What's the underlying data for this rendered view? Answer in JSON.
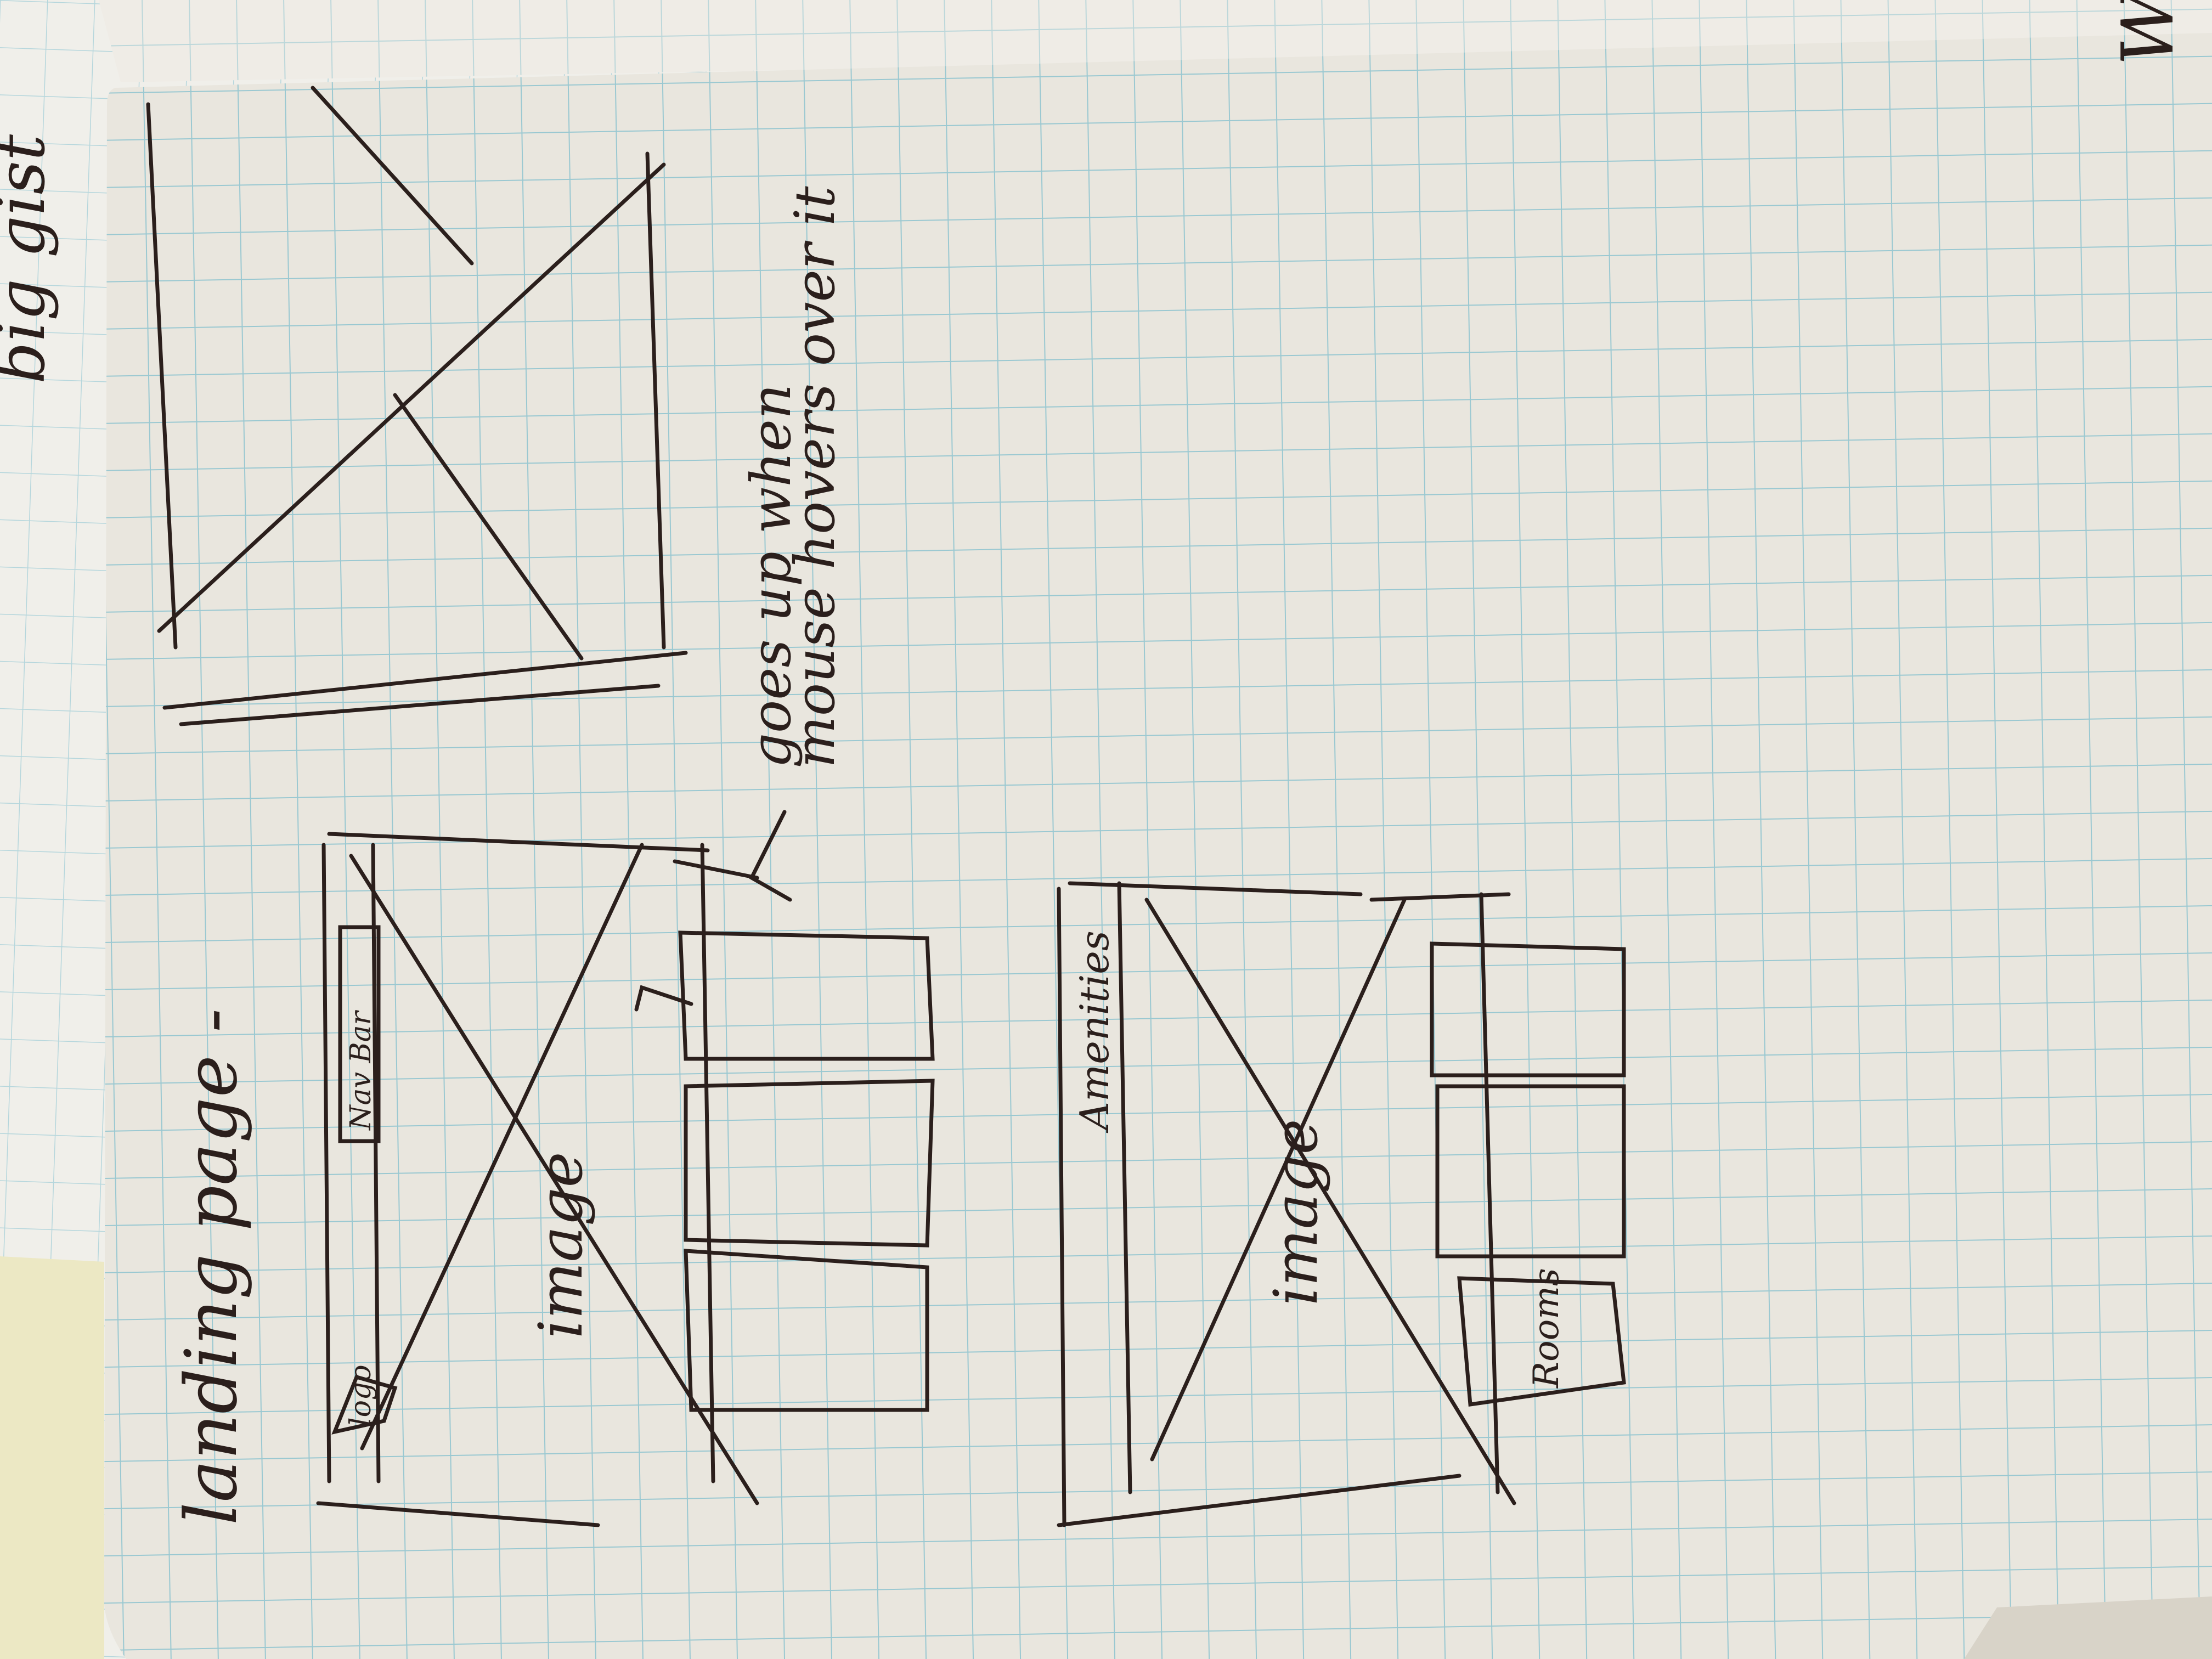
{
  "photo": {
    "subject": "notebook",
    "colors": {
      "paper": "#e9e6de",
      "grid": "#8cc3cf",
      "ink": "#2b1f1c",
      "desk": "#ece8c4",
      "background": "#f0efea"
    }
  },
  "sketch_a": {
    "title": "landing page -",
    "logo": "logo",
    "nav_bar": "Nav Bar",
    "image": "image"
  },
  "annotation": {
    "line1": "goes up when",
    "line2": "mouse hovers over it"
  },
  "sketch_b": {
    "bar": "Amenities",
    "image": "image",
    "small_box": "Rooms"
  },
  "top_page_text": {
    "line1": "big gist",
    "mark": "Wi"
  }
}
